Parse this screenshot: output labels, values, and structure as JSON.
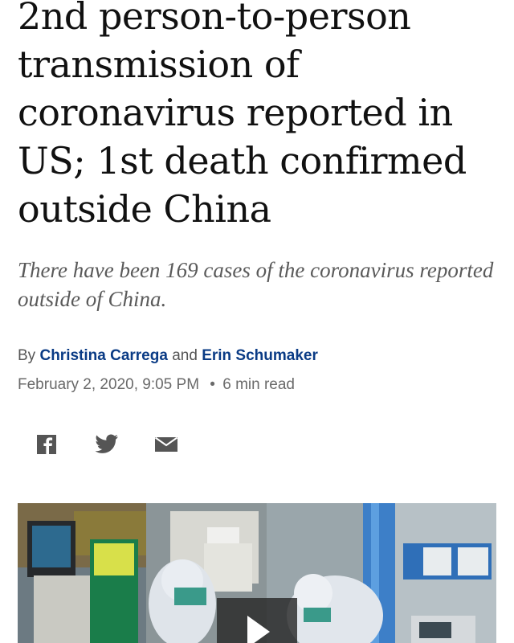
{
  "article": {
    "headline": "2nd person-to-person transmission of coronavirus reported in US; 1st death confirmed outside China",
    "subheadline": "There have been 169 cases of the coronavirus reported outside of China.",
    "byline": {
      "prefix": "By",
      "author_1": "Christina Carrega",
      "conjunction": "and",
      "author_2": "Erin Schumaker"
    },
    "date": "February 2, 2020, 9:05 PM",
    "read_time": "6 min read"
  },
  "share": {
    "icons": [
      "facebook-icon",
      "twitter-icon",
      "email-icon"
    ]
  },
  "media": {
    "type": "video",
    "play_icon": "play-icon"
  },
  "colors": {
    "headline": "#111111",
    "subheadline": "#5a5a5a",
    "author_link": "#0a3b85",
    "meta": "#6a6a6a",
    "share_icons": "#555555"
  }
}
